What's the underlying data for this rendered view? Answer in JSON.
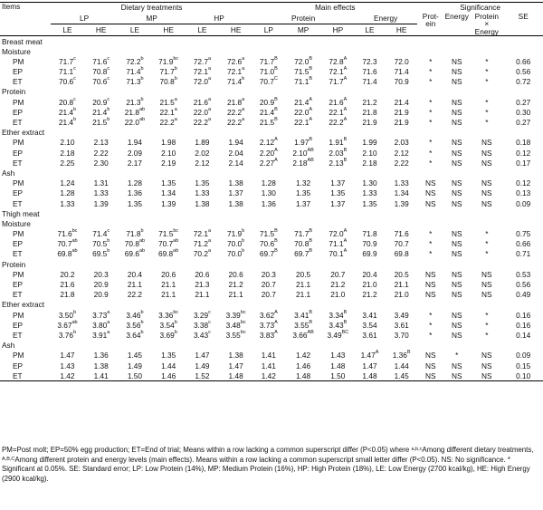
{
  "header": {
    "items": "Items",
    "dietary": "Dietary treatments",
    "main_effects": "Main effects",
    "significance": "Significance",
    "lp": "LP",
    "mp": "MP",
    "hp": "HP",
    "protein": "Protein",
    "energy": "Energy",
    "sig_protein": "Prot-\nein",
    "sig_energy": "Energy",
    "sig_interaction": "Protein\n×\nEnergy",
    "se": "SE",
    "le": "LE",
    "he": "HE"
  },
  "sections": [
    {
      "title": "Breast meat",
      "groups": [
        {
          "name": "Moisture",
          "rows": [
            [
              "PM",
              "71.7^c",
              "71.6^c",
              "72.2^b",
              "71.9^bc",
              "72.7^a",
              "72.6^a",
              "71.7^B",
              "72.0^B",
              "72.8^A",
              "72.3",
              "72.0",
              "*",
              "NS",
              "*",
              "0.66"
            ],
            [
              "EP",
              "71.1^c",
              "70.8^c",
              "71.4^b",
              "71.7^b",
              "72.1^a",
              "72.1^a",
              "71.0^B",
              "71.5^B",
              "72.1^A",
              "71.6",
              "71.4",
              "*",
              "NS",
              "*",
              "0.56"
            ],
            [
              "ET",
              "70.6^c",
              "70.6^c",
              "71.3^b",
              "70.8^b",
              "72.0^a",
              "71.4^b",
              "70.7^C",
              "71.1^B",
              "71.7^A",
              "71.4",
              "70.9",
              "*",
              "NS",
              "*",
              "0.72"
            ]
          ]
        },
        {
          "name": "Protein",
          "rows": [
            [
              "PM",
              "20.8^c",
              "20.9^c",
              "21.3^b",
              "21.5^a",
              "21.6^a",
              "21.8^a",
              "20.9^B",
              "21.4^A",
              "21.6^A",
              "21.2",
              "21.4",
              "*",
              "NS",
              "*",
              "0.27"
            ],
            [
              "EP",
              "21.4^b",
              "21.4^b",
              "21.8^ab",
              "22.1^a",
              "22.0^a",
              "22.2^a",
              "21.4^B",
              "22.0^A",
              "22.1^A",
              "21.8",
              "21.9",
              "*",
              "NS",
              "*",
              "0.30"
            ],
            [
              "ET",
              "21.4^b",
              "21.5^b",
              "22.0^ab",
              "22.2^a",
              "22.2^a",
              "22.2^a",
              "21.5^B",
              "22.1^A",
              "22.2^A",
              "21.9",
              "21.9",
              "*",
              "NS",
              "*",
              "0.27"
            ]
          ]
        },
        {
          "name": "Ether extract",
          "rows": [
            [
              "PM",
              "2.10",
              "2.13",
              "1.94",
              "1.98",
              "1.89",
              "1.94",
              "2.12^A",
              "1.97^B",
              "1.91^B",
              "1.99",
              "2.03",
              "*",
              "NS",
              "NS",
              "0.18"
            ],
            [
              "EP",
              "2.18",
              "2.22",
              "2.09",
              "2.10",
              "2.02",
              "2.04",
              "2.20^A",
              "2.10^AB",
              "2.03^B",
              "2.10",
              "2.12",
              "*",
              "NS",
              "NS",
              "0.12"
            ],
            [
              "ET",
              "2.25",
              "2.30",
              "2.17",
              "2.19",
              "2.12",
              "2.14",
              "2.27^A",
              "2.18^AB",
              "2.13^B",
              "2.18",
              "2.22",
              "*",
              "NS",
              "NS",
              "0.17"
            ]
          ]
        },
        {
          "name": "Ash",
          "rows": [
            [
              "PM",
              "1.24",
              "1.31",
              "1.28",
              "1.35",
              "1.35",
              "1.38",
              "1.28",
              "1.32",
              "1.37",
              "1.30",
              "1.33",
              "NS",
              "NS",
              "NS",
              "0.12"
            ],
            [
              "EP",
              "1.28",
              "1.33",
              "1.36",
              "1.34",
              "1.33",
              "1.37",
              "1.30",
              "1.35",
              "1.35",
              "1.33",
              "1.34",
              "NS",
              "NS",
              "NS",
              "0.13"
            ],
            [
              "ET",
              "1.33",
              "1.39",
              "1.35",
              "1.39",
              "1.38",
              "1.38",
              "1.36",
              "1.37",
              "1.37",
              "1.35",
              "1.39",
              "NS",
              "NS",
              "NS",
              "0.09"
            ]
          ]
        }
      ]
    },
    {
      "title": "Thigh meat",
      "groups": [
        {
          "name": "Moisture",
          "rows": [
            [
              "PM",
              "71.6^bc",
              "71.4^c",
              "71.8^b",
              "71.5^bc",
              "72.1^a",
              "71.9^b",
              "71.5^B",
              "71.7^B",
              "72.0^A",
              "71.8",
              "71.6",
              "*",
              "NS",
              "*",
              "0.75"
            ],
            [
              "EP",
              "70.7^ab",
              "70.5^b",
              "70.8^ab",
              "70.7^ab",
              "71.2^a",
              "70.0^b",
              "70.6^B",
              "70.8^B",
              "71.1^A",
              "70.9",
              "70.7",
              "*",
              "NS",
              "*",
              "0.66"
            ],
            [
              "ET",
              "69.8^ab",
              "69.5^b",
              "69.6^ab",
              "69.8^ab",
              "70.2^a",
              "70.0^b",
              "69.7^B",
              "69.7^B",
              "70.1^A",
              "69.9",
              "69.8",
              "*",
              "NS",
              "*",
              "0.71"
            ]
          ]
        },
        {
          "name": "Protein",
          "rows": [
            [
              "PM",
              "20.2",
              "20.3",
              "20.4",
              "20.6",
              "20.6",
              "20.6",
              "20.3",
              "20.5",
              "20.7",
              "20.4",
              "20.5",
              "NS",
              "NS",
              "NS",
              "0.53"
            ],
            [
              "EP",
              "21.6",
              "20.9",
              "21.1",
              "21.1",
              "21.3",
              "21.2",
              "20.7",
              "21.1",
              "21.2",
              "21.0",
              "21.1",
              "NS",
              "NS",
              "NS",
              "0.56"
            ],
            [
              "ET",
              "21.8",
              "20.9",
              "22.2",
              "21.1",
              "21.1",
              "21.1",
              "20.7",
              "21.1",
              "21.0",
              "21.2",
              "21.0",
              "NS",
              "NS",
              "NS",
              "0.49"
            ]
          ]
        },
        {
          "name": "Ether extract",
          "rows": [
            [
              "PM",
              "3.50^b",
              "3.73^a",
              "3.46^b",
              "3.36^bc",
              "3.29^c",
              "3.39^bc",
              "3.62^A",
              "3.41^B",
              "3.34^B",
              "3.41",
              "3.49",
              "*",
              "NS",
              "*",
              "0.16"
            ],
            [
              "EP",
              "3.67^ab",
              "3.80^a",
              "3.56^b",
              "3.54^b",
              "3.38^c",
              "3.48^bc",
              "3.73^A",
              "3.55^B",
              "3.43^B",
              "3.54",
              "3.61",
              "*",
              "NS",
              "*",
              "0.16"
            ],
            [
              "ET",
              "3.76^b",
              "3.91^a",
              "3.64^b",
              "3.69^b",
              "3.43^c",
              "3.55^bc",
              "3.83^A",
              "3.66^AB",
              "3.49^BC",
              "3.61",
              "3.70",
              "*",
              "NS",
              "*",
              "0.14"
            ]
          ]
        },
        {
          "name": "Ash",
          "rows": [
            [
              "PM",
              "1.47",
              "1.36",
              "1.45",
              "1.35",
              "1.47",
              "1.38",
              "1.41",
              "1.42",
              "1.43",
              "1.47^A",
              "1.36^B",
              "NS",
              "*",
              "NS",
              "0.09"
            ],
            [
              "EP",
              "1.43",
              "1.38",
              "1.49",
              "1.44",
              "1.49",
              "1.47",
              "1.41",
              "1.46",
              "1.48",
              "1.47",
              "1.44",
              "NS",
              "NS",
              "NS",
              "0.15"
            ],
            [
              "ET",
              "1.42",
              "1.41",
              "1.50",
              "1.46",
              "1.52",
              "1.48",
              "1.42",
              "1.48",
              "1.50",
              "1.48",
              "1.45",
              "NS",
              "NS",
              "NS",
              "0.10"
            ]
          ]
        }
      ]
    }
  ],
  "footnote": "PM=Post molt; EP=50% egg production; ET=End of trial; Means within a row lacking a common superscript differ (P<0.05) where ^a,b,c^Among different dietary treatments, ^A,B,C^Among different protein and energy levels (main effects). Means within a row lacking a common superscript small letter differ (P<0.05). NS: No significance. * Significant at 0.05%. SE: Standard error; LP: Low Protein (14%), MP: Medium Protein (16%), HP: High Protein (18%), LE: Low Energy (2700 kcal/kg), HE: High Energy (2900 kcal/kg)."
}
